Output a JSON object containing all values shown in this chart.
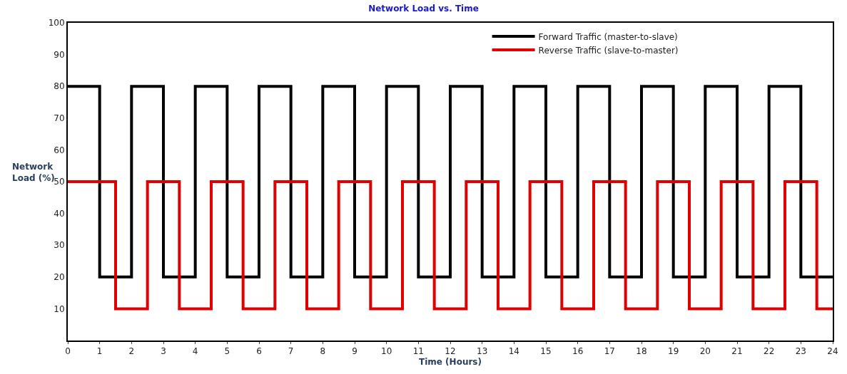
{
  "chart_data": {
    "type": "step",
    "title": "Network Load vs. Time",
    "xlabel": "Time (Hours)",
    "ylabel": "Network\nLoad (%)",
    "series": [
      {
        "name": "Forward Traffic (master-to-slave)",
        "color": "#000000",
        "x": [
          0,
          1,
          2,
          3,
          4,
          5,
          6,
          7,
          8,
          9,
          10,
          11,
          12,
          13,
          14,
          15,
          16,
          17,
          18,
          19,
          20,
          21,
          22,
          23,
          24
        ],
        "values": [
          80,
          20,
          80,
          20,
          80,
          20,
          80,
          20,
          80,
          20,
          80,
          20,
          80,
          20,
          80,
          20,
          80,
          20,
          80,
          20,
          80,
          20,
          80,
          20,
          20
        ]
      },
      {
        "name": "Reverse Traffic (slave-to-master)",
        "color": "#e00000",
        "x": [
          0,
          1.5,
          2.5,
          3.5,
          4.5,
          5.5,
          6.5,
          7.5,
          8.5,
          9.5,
          10.5,
          11.5,
          12.5,
          13.5,
          14.5,
          15.5,
          16.5,
          17.5,
          18.5,
          19.5,
          20.5,
          21.5,
          22.5,
          23.5,
          24
        ],
        "values": [
          50,
          10,
          50,
          10,
          50,
          10,
          50,
          10,
          50,
          10,
          50,
          10,
          50,
          10,
          50,
          10,
          50,
          10,
          50,
          10,
          50,
          10,
          50,
          10,
          10
        ]
      }
    ],
    "xlim": [
      0,
      24
    ],
    "xticks": [
      0,
      1,
      2,
      3,
      4,
      5,
      6,
      7,
      8,
      9,
      10,
      11,
      12,
      13,
      14,
      15,
      16,
      17,
      18,
      19,
      20,
      21,
      22,
      23,
      24
    ],
    "ylim": [
      0,
      100
    ],
    "yticks": [
      10,
      20,
      30,
      40,
      50,
      60,
      70,
      80,
      90,
      100
    ],
    "legend": "top right",
    "marker": "none",
    "line_style": "solid"
  }
}
